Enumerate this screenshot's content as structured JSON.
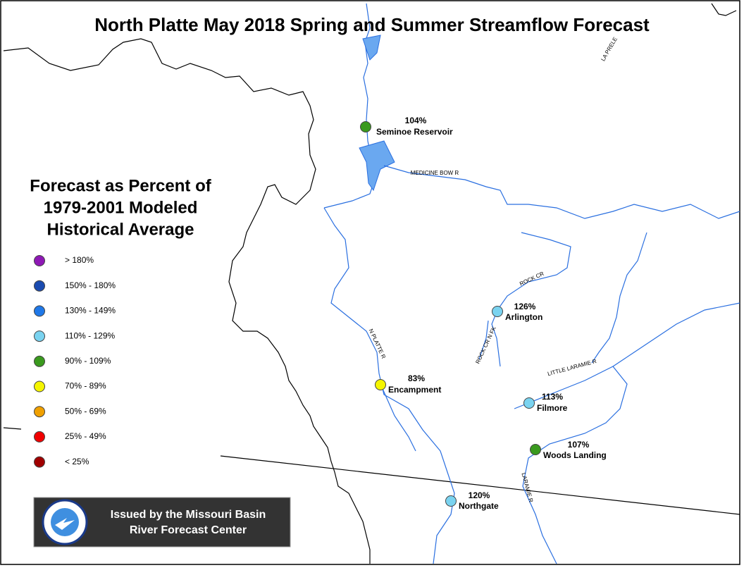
{
  "header": {
    "title": "North Platte May 2018 Spring and Summer Streamflow Forecast"
  },
  "legend": {
    "title_lines": [
      "Forecast as Percent of",
      "1979-2001 Modeled",
      "Historical Average"
    ],
    "items": [
      {
        "label": "> 180%",
        "color": "#8e18b5"
      },
      {
        "label": "150% - 180%",
        "color": "#1a4bb0"
      },
      {
        "label": "130% - 149%",
        "color": "#1f78e8"
      },
      {
        "label": "110% - 129%",
        "color": "#7ad3f0"
      },
      {
        "label": "90% - 109%",
        "color": "#3a9a1e"
      },
      {
        "label": "70% - 89%",
        "color": "#f5f500"
      },
      {
        "label": "50% - 69%",
        "color": "#f0a000"
      },
      {
        "label": "25% - 49%",
        "color": "#f00000"
      },
      {
        "label": "< 25%",
        "color": "#a00000"
      }
    ]
  },
  "stations": [
    {
      "name": "Seminoe Reservoir",
      "percent": "104%",
      "color": "#3a9a1e"
    },
    {
      "name": "Arlington",
      "percent": "126%",
      "color": "#7ad3f0"
    },
    {
      "name": "Encampment",
      "percent": "83%",
      "color": "#f5f500"
    },
    {
      "name": "Filmore",
      "percent": "113%",
      "color": "#7ad3f0"
    },
    {
      "name": "Woods Landing",
      "percent": "107%",
      "color": "#3a9a1e"
    },
    {
      "name": "Northgate",
      "percent": "120%",
      "color": "#7ad3f0"
    }
  ],
  "rivers": [
    "MEDICINE BOW R",
    "ROCK CR",
    "ROCK CR N FK",
    "N PLATTE R",
    "LITTLE LARAMIE R",
    "LARAMIE R",
    "LA PRELE"
  ],
  "footer": {
    "lines": [
      "Issued by the Missouri Basin",
      "River Forecast Center"
    ]
  }
}
